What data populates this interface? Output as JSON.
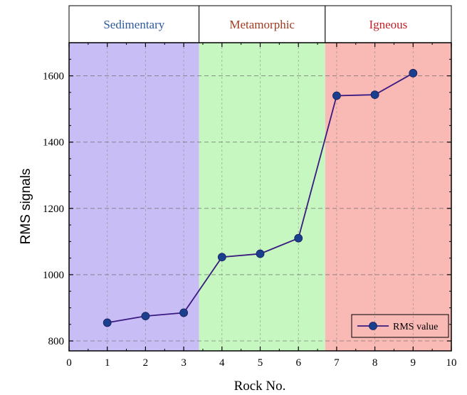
{
  "chart_data": {
    "type": "line",
    "title": "",
    "xlabel": "Rock No.",
    "ylabel": "RMS signals",
    "xlim": [
      0,
      10
    ],
    "ylim": [
      770,
      1700
    ],
    "xticks": [
      "0",
      "1",
      "2",
      "3",
      "4",
      "5",
      "6",
      "7",
      "8",
      "9",
      "10"
    ],
    "yticks": [
      "800",
      "1000",
      "1200",
      "1400",
      "1600"
    ],
    "grid": true,
    "legend_position": "bottom-right",
    "regions": [
      {
        "label": "Sedimentary",
        "x_start": 0,
        "x_end": 3.4,
        "fill": "#c8bdf5",
        "label_color": "#2e5a9c"
      },
      {
        "label": "Metamorphic",
        "x_start": 3.4,
        "x_end": 6.7,
        "fill": "#c6f7c0",
        "label_color": "#9c3a1e"
      },
      {
        "label": "Igneous",
        "x_start": 6.7,
        "x_end": 10,
        "fill": "#f9b9b4",
        "label_color": "#c0202a"
      }
    ],
    "series": [
      {
        "name": "RMS value",
        "color": "#3a1a80",
        "marker_color": "#1a3f8c",
        "x": [
          1,
          2,
          3,
          4,
          5,
          6,
          7,
          8,
          9
        ],
        "y": [
          855,
          875,
          885,
          1053,
          1063,
          1110,
          1540,
          1543,
          1608
        ]
      }
    ]
  }
}
